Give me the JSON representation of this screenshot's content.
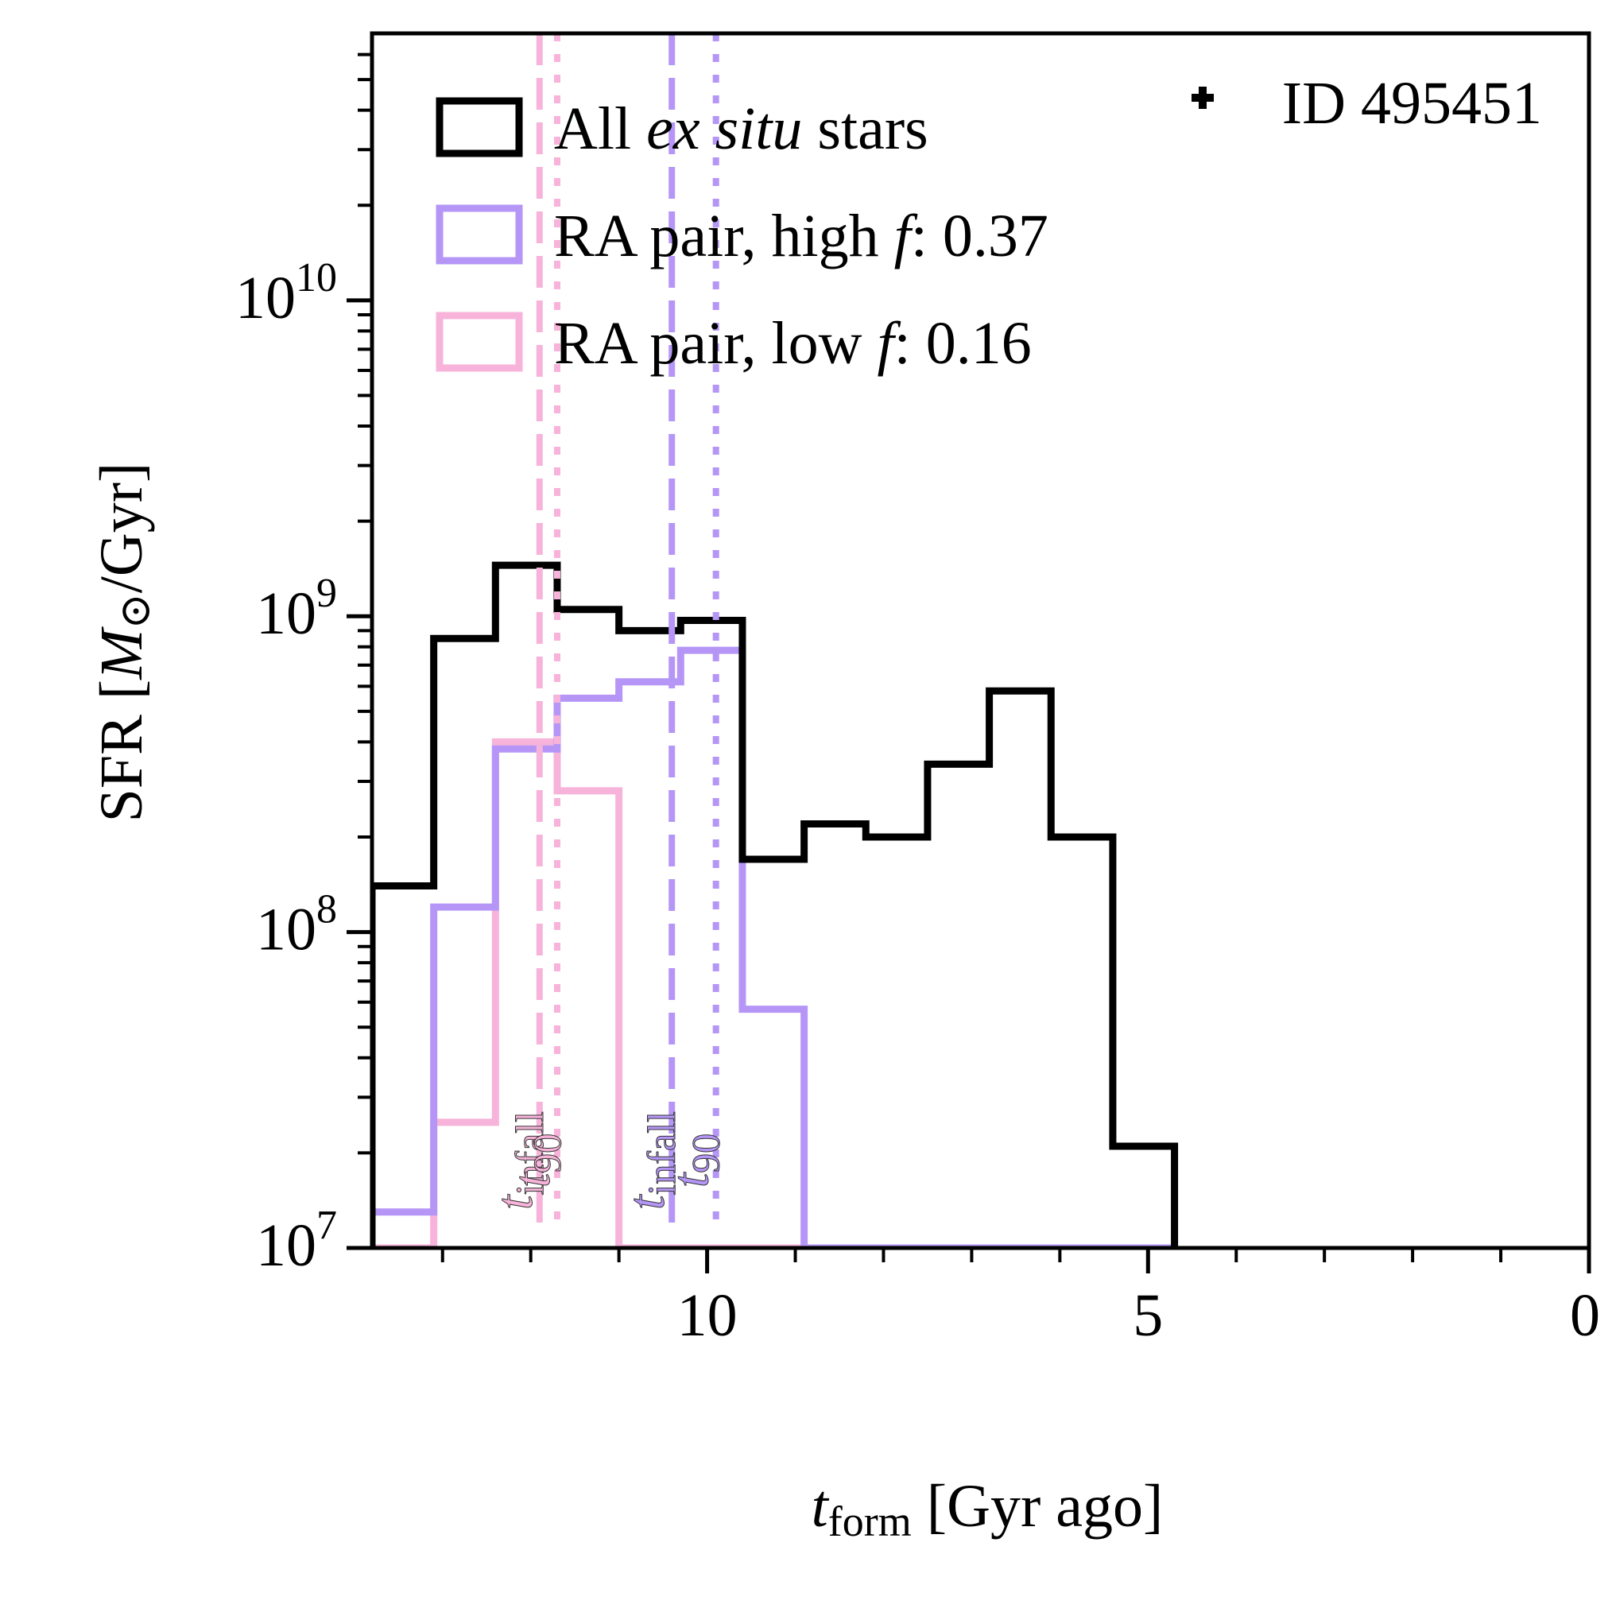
{
  "chart_data": {
    "type": "step-histogram",
    "title": "",
    "xlabel": {
      "var": "t",
      "sub": "form",
      "rest": " [Gyr ago]"
    },
    "ylabel": {
      "pre": "SFR [",
      "var": "M",
      "sym": "⊙",
      "post": "/Gyr]"
    },
    "xlim": [
      13.8,
      0
    ],
    "ylim": [
      10000000,
      70000000000
    ],
    "xscale": "linear",
    "yscale": "log",
    "x_ticks": [
      10,
      5,
      0
    ],
    "x_tick_labels": [
      "10",
      "5",
      "0"
    ],
    "y_ticks": [
      10000000,
      100000000,
      1000000000,
      10000000000
    ],
    "y_tick_labels": [
      {
        "base": "10",
        "exp": "7"
      },
      {
        "base": "10",
        "exp": "8"
      },
      {
        "base": "10",
        "exp": "9"
      },
      {
        "base": "10",
        "exp": "10"
      }
    ],
    "bin_edges": [
      13.8,
      13.1,
      12.4,
      11.7,
      11.0,
      10.3,
      9.6,
      8.9,
      8.2,
      7.5,
      6.8,
      6.1,
      5.4,
      4.7
    ],
    "series": [
      {
        "name": "All ex situ stars",
        "color": "#000000",
        "values": [
          140000000,
          850000000,
          1450000000,
          1050000000,
          900000000,
          970000000,
          170000000,
          220000000,
          200000000,
          340000000,
          580000000,
          200000000,
          21000000,
          10000000
        ]
      },
      {
        "name": "RA pair, high f: 0.37",
        "color": "#b596f7",
        "values": [
          13000000,
          120000000,
          380000000,
          550000000,
          620000000,
          780000000,
          57000000,
          10000000,
          10000000,
          10000000,
          10000000,
          10000000,
          10000000,
          10000000
        ]
      },
      {
        "name": "RA pair, low f: 0.16",
        "color": "#f7b3d9",
        "values": [
          10000000,
          25000000,
          400000000,
          280000000,
          10000000,
          10000000,
          10000000,
          10000000,
          10000000,
          10000000,
          10000000,
          10000000,
          10000000,
          10000000
        ]
      }
    ],
    "legend": {
      "location": "upper-left",
      "entries": [
        {
          "pre": "All ",
          "italic": "ex situ",
          "post": " stars",
          "color": "#000000"
        },
        {
          "pre": "RA pair, high ",
          "italic": "f",
          "post": ": 0.37",
          "color": "#b596f7"
        },
        {
          "pre": "RA pair, low ",
          "italic": "f",
          "post": ": 0.16",
          "color": "#f7b3d9"
        }
      ]
    },
    "vlines": [
      {
        "x": 11.9,
        "style": "dashed",
        "color": "#f7b3d9",
        "label_var": "t",
        "label_sub": "infall"
      },
      {
        "x": 11.7,
        "style": "dotted",
        "color": "#f7b3d9",
        "label_var": "t",
        "label_sub": "90"
      },
      {
        "x": 10.4,
        "style": "dashed",
        "color": "#b596f7",
        "label_var": "t",
        "label_sub": "infall"
      },
      {
        "x": 9.9,
        "style": "dotted",
        "color": "#b596f7",
        "label_var": "t",
        "label_sub": "90"
      }
    ],
    "annotation": {
      "marker": "plus",
      "text": "ID 495451",
      "location": "upper-right"
    }
  }
}
